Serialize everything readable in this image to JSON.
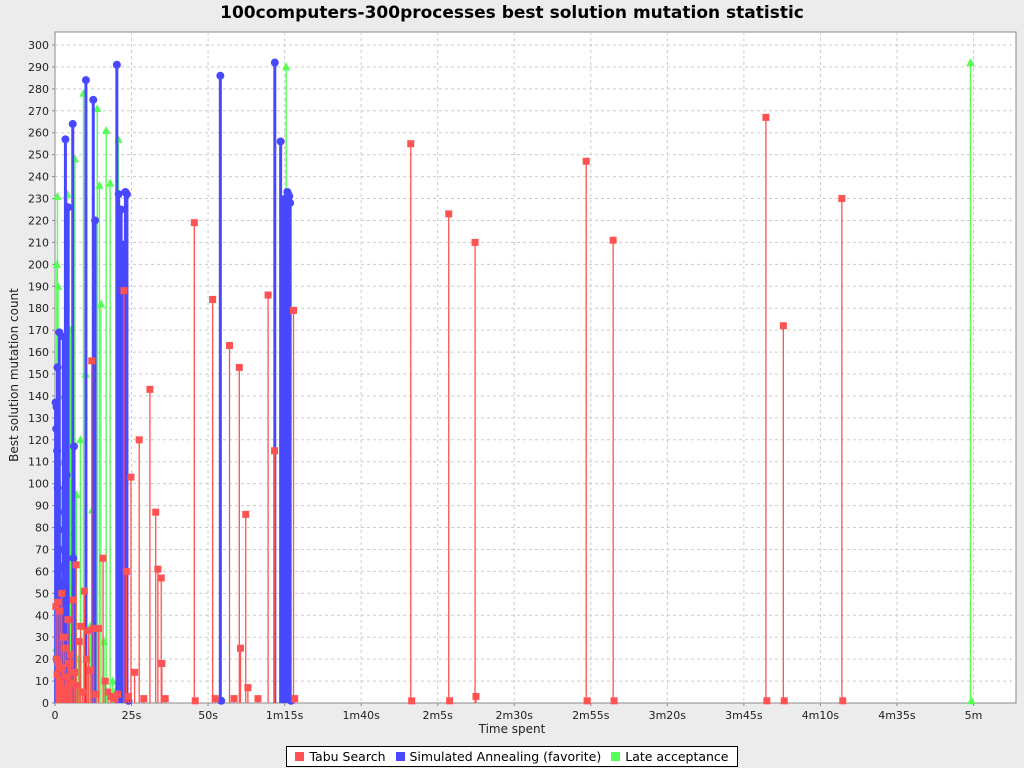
{
  "title": "100computers-300processes best solution mutation statistic",
  "axes": {
    "x_label": "Time spent",
    "y_label": "Best solution mutation count",
    "x_ticks": [
      {
        "t": 0,
        "label": "0"
      },
      {
        "t": 25,
        "label": "25s"
      },
      {
        "t": 50,
        "label": "50s"
      },
      {
        "t": 75,
        "label": "1m15s"
      },
      {
        "t": 100,
        "label": "1m40s"
      },
      {
        "t": 125,
        "label": "2m5s"
      },
      {
        "t": 150,
        "label": "2m30s"
      },
      {
        "t": 175,
        "label": "2m55s"
      },
      {
        "t": 200,
        "label": "3m20s"
      },
      {
        "t": 225,
        "label": "3m45s"
      },
      {
        "t": 250,
        "label": "4m10s"
      },
      {
        "t": 275,
        "label": "4m35s"
      },
      {
        "t": 300,
        "label": "5m"
      }
    ],
    "y_min": 0,
    "y_max": 300,
    "y_step": 10,
    "x_max_seconds": 300,
    "grid": "dashed",
    "grid_color": "#cccccc",
    "plot_background": "#ffffff",
    "outer_background": "#ececec",
    "axis_color": "#8a8a8a"
  },
  "legend": {
    "position": "bottom-center",
    "items": [
      {
        "label": "Tabu Search",
        "color": "#ff5252",
        "marker": "square"
      },
      {
        "label": "Simulated Annealing (favorite)",
        "color": "#4848ff",
        "marker": "circle"
      },
      {
        "label": "Late acceptance",
        "color": "#55ff55",
        "marker": "triangle"
      }
    ]
  },
  "chart_data": {
    "type": "scatter",
    "subtype": "stem-lollipop",
    "title": "100computers-300processes best solution mutation statistic",
    "xlabel": "Time spent",
    "ylabel": "Best solution mutation count",
    "x_unit": "seconds",
    "xlim": [
      0,
      300
    ],
    "ylim": [
      0,
      300
    ],
    "series": [
      {
        "name": "Late acceptance",
        "color": "#55ff55",
        "marker": "triangle",
        "line_width": 1.4,
        "points": [
          [
            0.4,
            25
          ],
          [
            0.6,
            200
          ],
          [
            0.8,
            231
          ],
          [
            1.0,
            190
          ],
          [
            1.2,
            65
          ],
          [
            1.6,
            110
          ],
          [
            2.0,
            95
          ],
          [
            2.4,
            18
          ],
          [
            2.8,
            140
          ],
          [
            3.2,
            52
          ],
          [
            3.6,
            10
          ],
          [
            4.0,
            232
          ],
          [
            4.5,
            78
          ],
          [
            5.0,
            170
          ],
          [
            5.5,
            30
          ],
          [
            6.0,
            12
          ],
          [
            6.5,
            248
          ],
          [
            7.0,
            95
          ],
          [
            7.6,
            20
          ],
          [
            8.3,
            120
          ],
          [
            9.3,
            278
          ],
          [
            10.0,
            150
          ],
          [
            10.8,
            15
          ],
          [
            11.5,
            35
          ],
          [
            12.2,
            88
          ],
          [
            13.0,
            6
          ],
          [
            13.8,
            271
          ],
          [
            14.5,
            236
          ],
          [
            15.0,
            182
          ],
          [
            16.0,
            28
          ],
          [
            16.7,
            261
          ],
          [
            18.0,
            237
          ],
          [
            18.8,
            10
          ],
          [
            20.0,
            6
          ],
          [
            20.7,
            257
          ],
          [
            22.0,
            4
          ],
          [
            75.5,
            290
          ],
          [
            299.0,
            292
          ],
          [
            299.3,
            1
          ]
        ]
      },
      {
        "name": "Simulated Annealing (favorite)",
        "color": "#4848ff",
        "marker": "circle",
        "line_width": 3,
        "points": [
          [
            0.2,
            137
          ],
          [
            0.4,
            125
          ],
          [
            0.5,
            135
          ],
          [
            0.7,
            115
          ],
          [
            0.8,
            153
          ],
          [
            0.9,
            98
          ],
          [
            1.1,
            87
          ],
          [
            1.3,
            79
          ],
          [
            1.4,
            169
          ],
          [
            1.5,
            70
          ],
          [
            1.7,
            62
          ],
          [
            1.9,
            55
          ],
          [
            2.1,
            48
          ],
          [
            2.3,
            40
          ],
          [
            2.5,
            30
          ],
          [
            2.7,
            167
          ],
          [
            2.9,
            20
          ],
          [
            3.1,
            12
          ],
          [
            3.4,
            257
          ],
          [
            3.6,
            8
          ],
          [
            3.8,
            104
          ],
          [
            4.0,
            5
          ],
          [
            4.3,
            226
          ],
          [
            4.6,
            2
          ],
          [
            5.8,
            264
          ],
          [
            6.0,
            66
          ],
          [
            6.2,
            117
          ],
          [
            10.1,
            284
          ],
          [
            12.5,
            275
          ],
          [
            13.1,
            220
          ],
          [
            20.2,
            291
          ],
          [
            20.8,
            232
          ],
          [
            21.6,
            225
          ],
          [
            22.1,
            209
          ],
          [
            22.6,
            2
          ],
          [
            23.0,
            233
          ],
          [
            23.5,
            232
          ],
          [
            24.0,
            1
          ],
          [
            54.0,
            286
          ],
          [
            54.3,
            1
          ],
          [
            71.8,
            292
          ],
          [
            73.7,
            256
          ],
          [
            74.6,
            228
          ],
          [
            74.9,
            227
          ],
          [
            75.2,
            230
          ],
          [
            75.9,
            233
          ],
          [
            76.2,
            232
          ],
          [
            76.5,
            231
          ],
          [
            76.8,
            228
          ],
          [
            77.1,
            1
          ]
        ]
      },
      {
        "name": "Tabu Search",
        "color": "#ff5252",
        "marker": "square",
        "line_width": 1.3,
        "points": [
          [
            0.3,
            44
          ],
          [
            0.5,
            20
          ],
          [
            0.7,
            13
          ],
          [
            0.9,
            46
          ],
          [
            1.1,
            18
          ],
          [
            1.3,
            10
          ],
          [
            1.6,
            42
          ],
          [
            1.9,
            8
          ],
          [
            2.2,
            50
          ],
          [
            2.5,
            16
          ],
          [
            2.8,
            30
          ],
          [
            3.1,
            6
          ],
          [
            3.4,
            25
          ],
          [
            3.8,
            12
          ],
          [
            4.2,
            38
          ],
          [
            4.6,
            18
          ],
          [
            5.0,
            22
          ],
          [
            5.4,
            9
          ],
          [
            5.9,
            47
          ],
          [
            6.4,
            14
          ],
          [
            6.9,
            63
          ],
          [
            7.4,
            8
          ],
          [
            7.9,
            28
          ],
          [
            8.4,
            35
          ],
          [
            9.0,
            5
          ],
          [
            9.6,
            51
          ],
          [
            10.3,
            20
          ],
          [
            11.0,
            33
          ],
          [
            11.7,
            15
          ],
          [
            12.0,
            156
          ],
          [
            12.6,
            34
          ],
          [
            13.4,
            4
          ],
          [
            14.2,
            34
          ],
          [
            15.7,
            66
          ],
          [
            16.4,
            10
          ],
          [
            17.3,
            5
          ],
          [
            18.2,
            3
          ],
          [
            19.5,
            2
          ],
          [
            20.5,
            4
          ],
          [
            22.5,
            188
          ],
          [
            23.3,
            60
          ],
          [
            24.0,
            3
          ],
          [
            24.8,
            103
          ],
          [
            26.0,
            14
          ],
          [
            27.5,
            120
          ],
          [
            29.0,
            2
          ],
          [
            31.0,
            143
          ],
          [
            32.9,
            87
          ],
          [
            33.6,
            61
          ],
          [
            34.7,
            57
          ],
          [
            34.9,
            18
          ],
          [
            36.0,
            2
          ],
          [
            45.5,
            219
          ],
          [
            45.8,
            1
          ],
          [
            51.5,
            184
          ],
          [
            52.3,
            2
          ],
          [
            57.0,
            163
          ],
          [
            58.5,
            2
          ],
          [
            60.2,
            153
          ],
          [
            60.6,
            25
          ],
          [
            62.3,
            86
          ],
          [
            63.0,
            7
          ],
          [
            66.3,
            2
          ],
          [
            69.6,
            186
          ],
          [
            71.7,
            115
          ],
          [
            77.9,
            179
          ],
          [
            78.3,
            2
          ],
          [
            116.2,
            255
          ],
          [
            116.5,
            1
          ],
          [
            128.6,
            223
          ],
          [
            128.9,
            1
          ],
          [
            137.2,
            210
          ],
          [
            137.5,
            3
          ],
          [
            173.5,
            247
          ],
          [
            173.8,
            1
          ],
          [
            182.3,
            211
          ],
          [
            182.6,
            1
          ],
          [
            232.2,
            267
          ],
          [
            232.5,
            1
          ],
          [
            237.9,
            172
          ],
          [
            238.2,
            1
          ],
          [
            257.0,
            230
          ],
          [
            257.3,
            1
          ]
        ]
      }
    ],
    "legend_entries": [
      "Tabu Search",
      "Simulated Annealing (favorite)",
      "Late acceptance"
    ],
    "legend_position": "bottom"
  }
}
